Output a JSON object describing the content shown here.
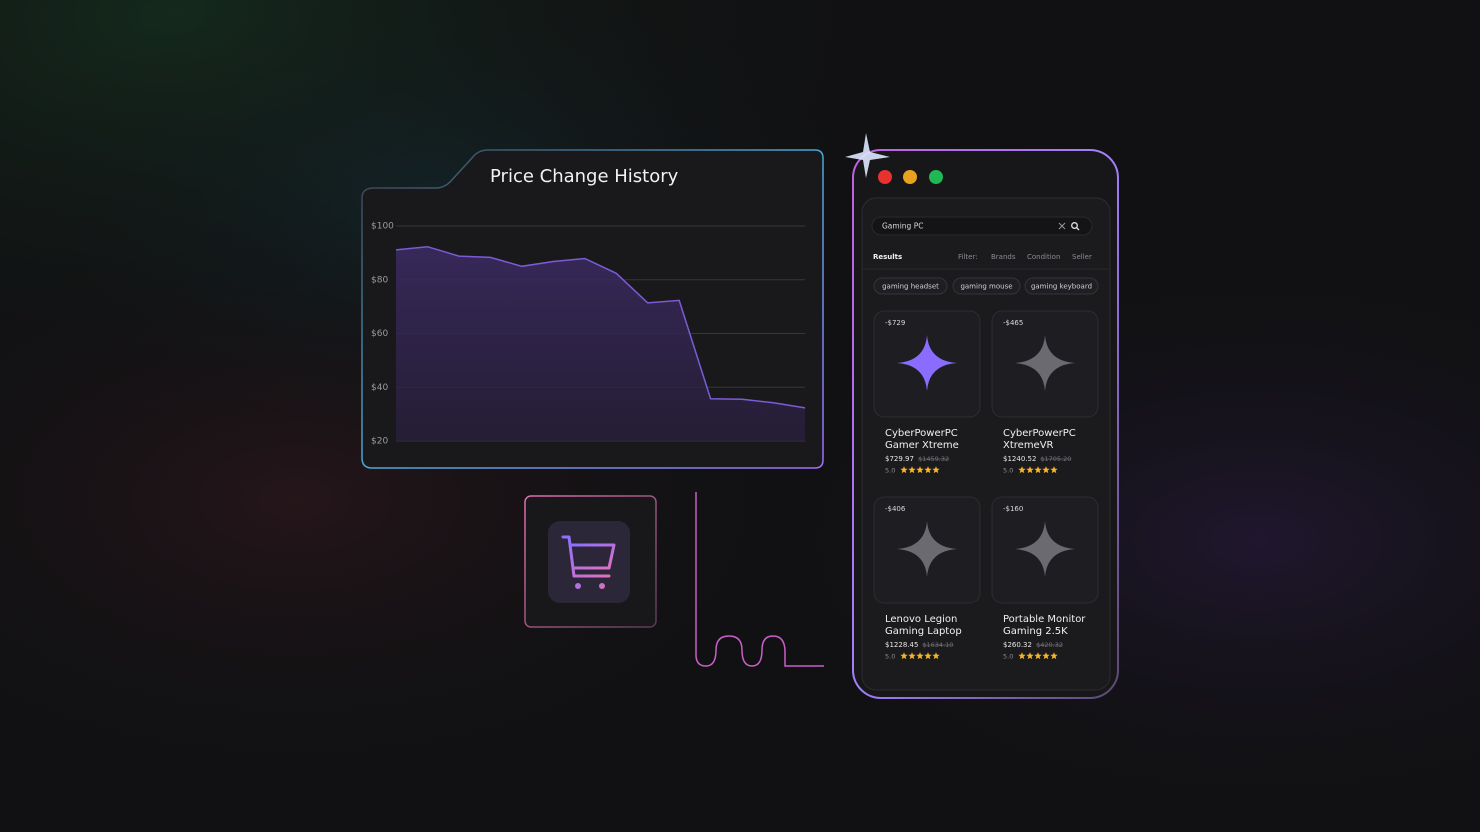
{
  "chart_data": {
    "type": "area",
    "title": "Price Change History",
    "values": [
      91.1,
      92.3,
      88.8,
      88.3,
      85.0,
      86.8,
      87.9,
      82.4,
      71.4,
      72.3,
      35.7,
      35.5,
      34.2,
      32.3
    ],
    "color": "#7b5cd6",
    "ylim": [
      20,
      100
    ],
    "yticks": [
      {
        "value": 20,
        "label": "$20"
      },
      {
        "value": 40,
        "label": "$40"
      },
      {
        "value": 60,
        "label": "$60"
      },
      {
        "value": 80,
        "label": "$80"
      },
      {
        "value": 100,
        "label": "$100"
      }
    ],
    "grid": true
  },
  "app": {
    "search": "Gaming PC",
    "tabs": [
      "Results",
      "Filter:",
      "Brands",
      "Condition",
      "Seller"
    ],
    "chips": [
      "gaming headset",
      "gaming mouse",
      "gaming keyboard"
    ],
    "products": [
      {
        "discount": "-$729",
        "name": [
          "CyberPowerPC",
          "Gamer Xtreme"
        ],
        "price": "$729.97",
        "old_price": "$1459.32",
        "rating": "5.0"
      },
      {
        "discount": "-$465",
        "name": [
          "CyberPowerPC",
          "XtremeVR"
        ],
        "price": "$1240.52",
        "old_price": "$1705.20",
        "rating": "5.0"
      },
      {
        "discount": "-$406",
        "name": [
          "Lenovo Legion",
          "Gaming Laptop"
        ],
        "price": "$1228.45",
        "old_price": "$1634.10",
        "rating": "5.0"
      },
      {
        "discount": "-$160",
        "name": [
          "Portable Monitor",
          "Gaming  2.5K"
        ],
        "price": "$260.32",
        "old_price": "$420.32",
        "rating": "5.0"
      }
    ]
  }
}
